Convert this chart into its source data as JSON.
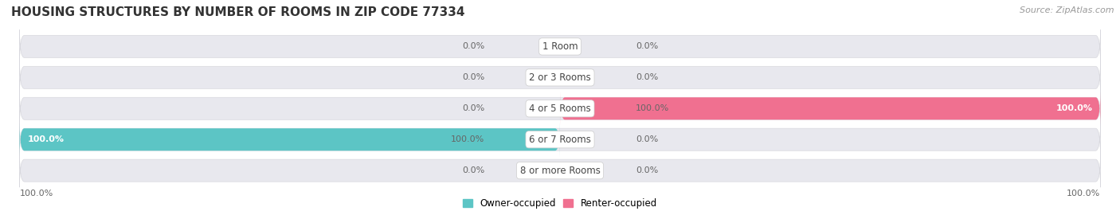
{
  "title": "HOUSING STRUCTURES BY NUMBER OF ROOMS IN ZIP CODE 77334",
  "source": "Source: ZipAtlas.com",
  "categories": [
    "1 Room",
    "2 or 3 Rooms",
    "4 or 5 Rooms",
    "6 or 7 Rooms",
    "8 or more Rooms"
  ],
  "owner_values": [
    0.0,
    0.0,
    0.0,
    100.0,
    0.0
  ],
  "renter_values": [
    0.0,
    0.0,
    100.0,
    0.0,
    0.0
  ],
  "owner_color": "#5CC5C5",
  "renter_color": "#F07090",
  "bar_bg_color": "#E8E8EE",
  "bar_bg_outline": "#D8D8DE",
  "bar_height": 0.72,
  "figsize": [
    14.06,
    2.7
  ],
  "dpi": 100,
  "title_fontsize": 11,
  "label_fontsize": 8,
  "category_fontsize": 8.5,
  "legend_fontsize": 8.5,
  "source_fontsize": 8,
  "background_color": "#FFFFFF",
  "x_range": 100.0,
  "row_sep_color": "#FFFFFF",
  "label_color": "#666666",
  "end_label_color": "#FFFFFF",
  "category_label_color": "#444444"
}
